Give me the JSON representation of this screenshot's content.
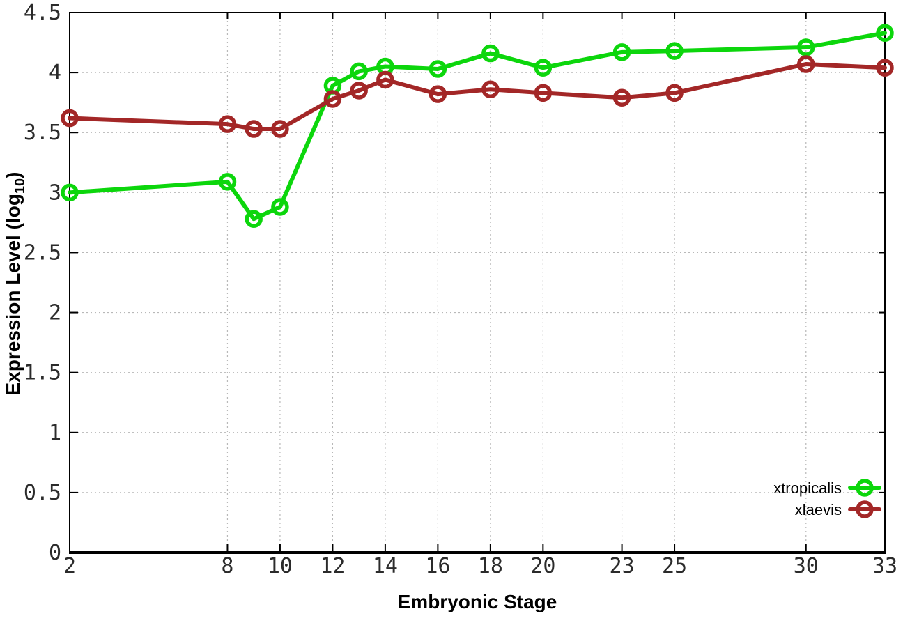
{
  "figure": {
    "background": "#ffffff",
    "x_axis_title": "Embryonic Stage",
    "y_axis_title_pre": "Expression Level (log",
    "y_axis_title_sub": "10",
    "y_axis_title_post": ")"
  },
  "chart_data": {
    "type": "line",
    "title": "",
    "xlabel": "Embryonic Stage",
    "ylabel": "Expression Level (log10)",
    "x": [
      2,
      8,
      9,
      10,
      12,
      13,
      14,
      16,
      18,
      20,
      23,
      25,
      30,
      33
    ],
    "series": [
      {
        "name": "xtropicalis",
        "color": "#0cd60c",
        "values": [
          3.0,
          3.09,
          2.78,
          2.88,
          3.89,
          4.01,
          4.05,
          4.03,
          4.16,
          4.04,
          4.17,
          4.18,
          4.21,
          4.33
        ]
      },
      {
        "name": "xlaevis",
        "color": "#a32727",
        "values": [
          3.62,
          3.57,
          3.53,
          3.53,
          3.78,
          3.85,
          3.94,
          3.82,
          3.86,
          3.83,
          3.79,
          3.83,
          4.07,
          4.04
        ]
      }
    ],
    "xlim": [
      2,
      33
    ],
    "ylim": [
      0,
      4.5
    ],
    "xticks": [
      2,
      8,
      10,
      12,
      14,
      16,
      18,
      20,
      23,
      25,
      30,
      33
    ],
    "yticks": [
      0,
      0.5,
      1,
      1.5,
      2,
      2.5,
      3,
      3.5,
      4,
      4.5
    ],
    "grid": true,
    "marker": "open-circle",
    "legend_position": "inside-bottom-right"
  },
  "style": {
    "grid_color": "#b8b8b8",
    "axis_color": "#000000",
    "tick_label_color": "#2b2b2b",
    "line_width": 6,
    "marker_radius": 10,
    "marker_stroke_width": 5.5
  }
}
